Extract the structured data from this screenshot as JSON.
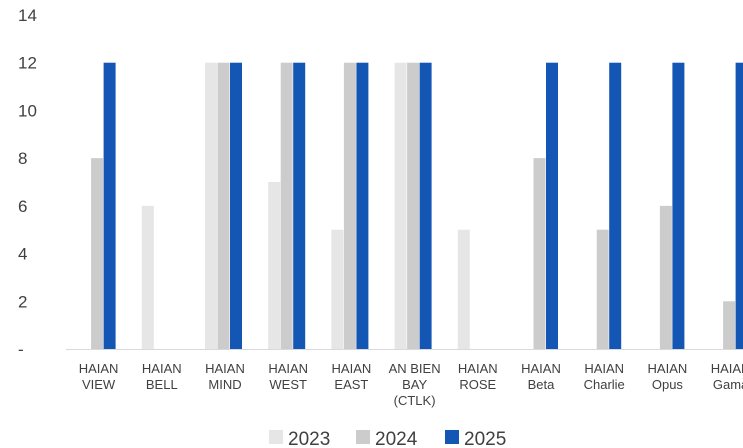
{
  "chart_data": {
    "type": "bar",
    "title": "",
    "xlabel": "",
    "ylabel": "",
    "ylim": [
      0,
      14
    ],
    "y_ticks": [
      {
        "value": 0,
        "label": "-"
      },
      {
        "value": 2,
        "label": "2"
      },
      {
        "value": 4,
        "label": "4"
      },
      {
        "value": 6,
        "label": "6"
      },
      {
        "value": 8,
        "label": "8"
      },
      {
        "value": 10,
        "label": "10"
      },
      {
        "value": 12,
        "label": "12"
      },
      {
        "value": 14,
        "label": "14"
      }
    ],
    "grid": false,
    "legend_position": "bottom",
    "categories": [
      [
        "HAIAN",
        "VIEW"
      ],
      [
        "HAIAN",
        "BELL"
      ],
      [
        "HAIAN",
        "MIND"
      ],
      [
        "HAIAN",
        "WEST"
      ],
      [
        "HAIAN",
        "EAST"
      ],
      [
        "AN BIEN",
        "BAY",
        "(CTLK)"
      ],
      [
        "HAIAN",
        "ROSE"
      ],
      [
        "HAIAN",
        "Beta"
      ],
      [
        "HAIAN",
        "Charlie"
      ],
      [
        "HAIAN",
        "Opus"
      ],
      [
        "HAIAN",
        "Gama"
      ]
    ],
    "series": [
      {
        "name": "2023",
        "color": "#e6e6e6",
        "values": [
          0,
          6,
          12,
          7,
          5,
          12,
          5,
          0,
          0,
          0,
          0
        ]
      },
      {
        "name": "2024",
        "color": "#cccccc",
        "values": [
          8,
          0,
          12,
          12,
          12,
          12,
          0,
          8,
          5,
          6,
          2
        ]
      },
      {
        "name": "2025",
        "color": "#1456b4",
        "values": [
          12,
          0,
          12,
          12,
          12,
          12,
          0,
          12,
          12,
          12,
          12
        ]
      }
    ]
  }
}
